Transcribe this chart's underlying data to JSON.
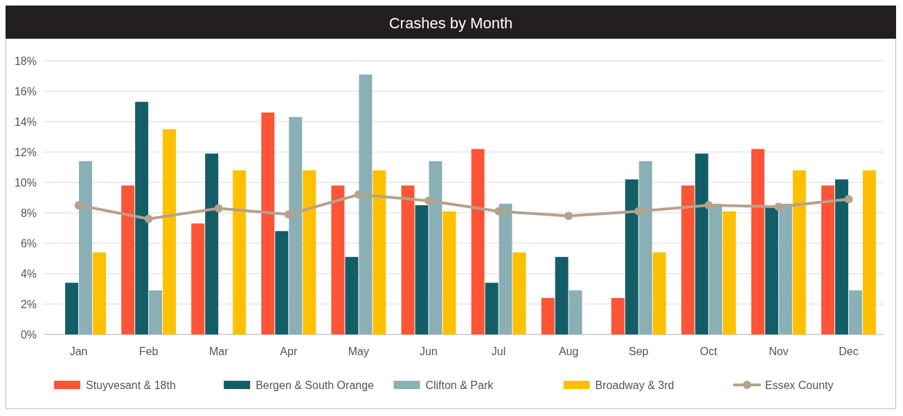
{
  "chart_data": {
    "type": "bar",
    "title": "Crashes by Month",
    "categories": [
      "Jan",
      "Feb",
      "Mar",
      "Apr",
      "May",
      "Jun",
      "Jul",
      "Aug",
      "Sep",
      "Oct",
      "Nov",
      "Dec"
    ],
    "series": [
      {
        "name": "Stuyvesant & 18th",
        "color": "#ff5436",
        "values": [
          0,
          9.8,
          7.3,
          14.6,
          9.8,
          9.8,
          12.2,
          2.4,
          2.4,
          9.8,
          12.2,
          9.8
        ]
      },
      {
        "name": "Bergen & South Orange",
        "color": "#135e66",
        "values": [
          3.4,
          15.3,
          11.9,
          6.8,
          5.1,
          8.5,
          3.4,
          5.1,
          10.2,
          11.9,
          8.4,
          10.2
        ]
      },
      {
        "name": "Clifton & Park",
        "color": "#8aafb4",
        "values": [
          11.4,
          2.9,
          0,
          14.3,
          17.1,
          11.4,
          8.6,
          2.9,
          11.4,
          8.6,
          8.6,
          2.9
        ]
      },
      {
        "name": "Broadway & 3rd",
        "color": "#ffc000",
        "values": [
          5.4,
          13.5,
          10.8,
          10.8,
          10.8,
          8.1,
          5.4,
          0,
          5.4,
          8.1,
          10.8,
          10.8
        ]
      },
      {
        "name": "Essex County",
        "type": "line",
        "color": "#b5a28c",
        "marker": "circle",
        "values": [
          8.5,
          7.6,
          8.3,
          7.9,
          9.2,
          8.8,
          8.1,
          7.8,
          8.1,
          8.5,
          8.4,
          8.9
        ]
      }
    ],
    "ylim": [
      0,
      18
    ],
    "yticks": [
      {
        "value": 0,
        "label": "0%"
      },
      {
        "value": 2,
        "label": "2%"
      },
      {
        "value": 4,
        "label": "4%"
      },
      {
        "value": 6,
        "label": "6%"
      },
      {
        "value": 8,
        "label": "8%"
      },
      {
        "value": 10,
        "label": "10%"
      },
      {
        "value": 12,
        "label": "12%"
      },
      {
        "value": 14,
        "label": "14%"
      },
      {
        "value": 16,
        "label": "16%"
      },
      {
        "value": 18,
        "label": "18%"
      }
    ],
    "grid": "y",
    "legend": "bottom"
  }
}
